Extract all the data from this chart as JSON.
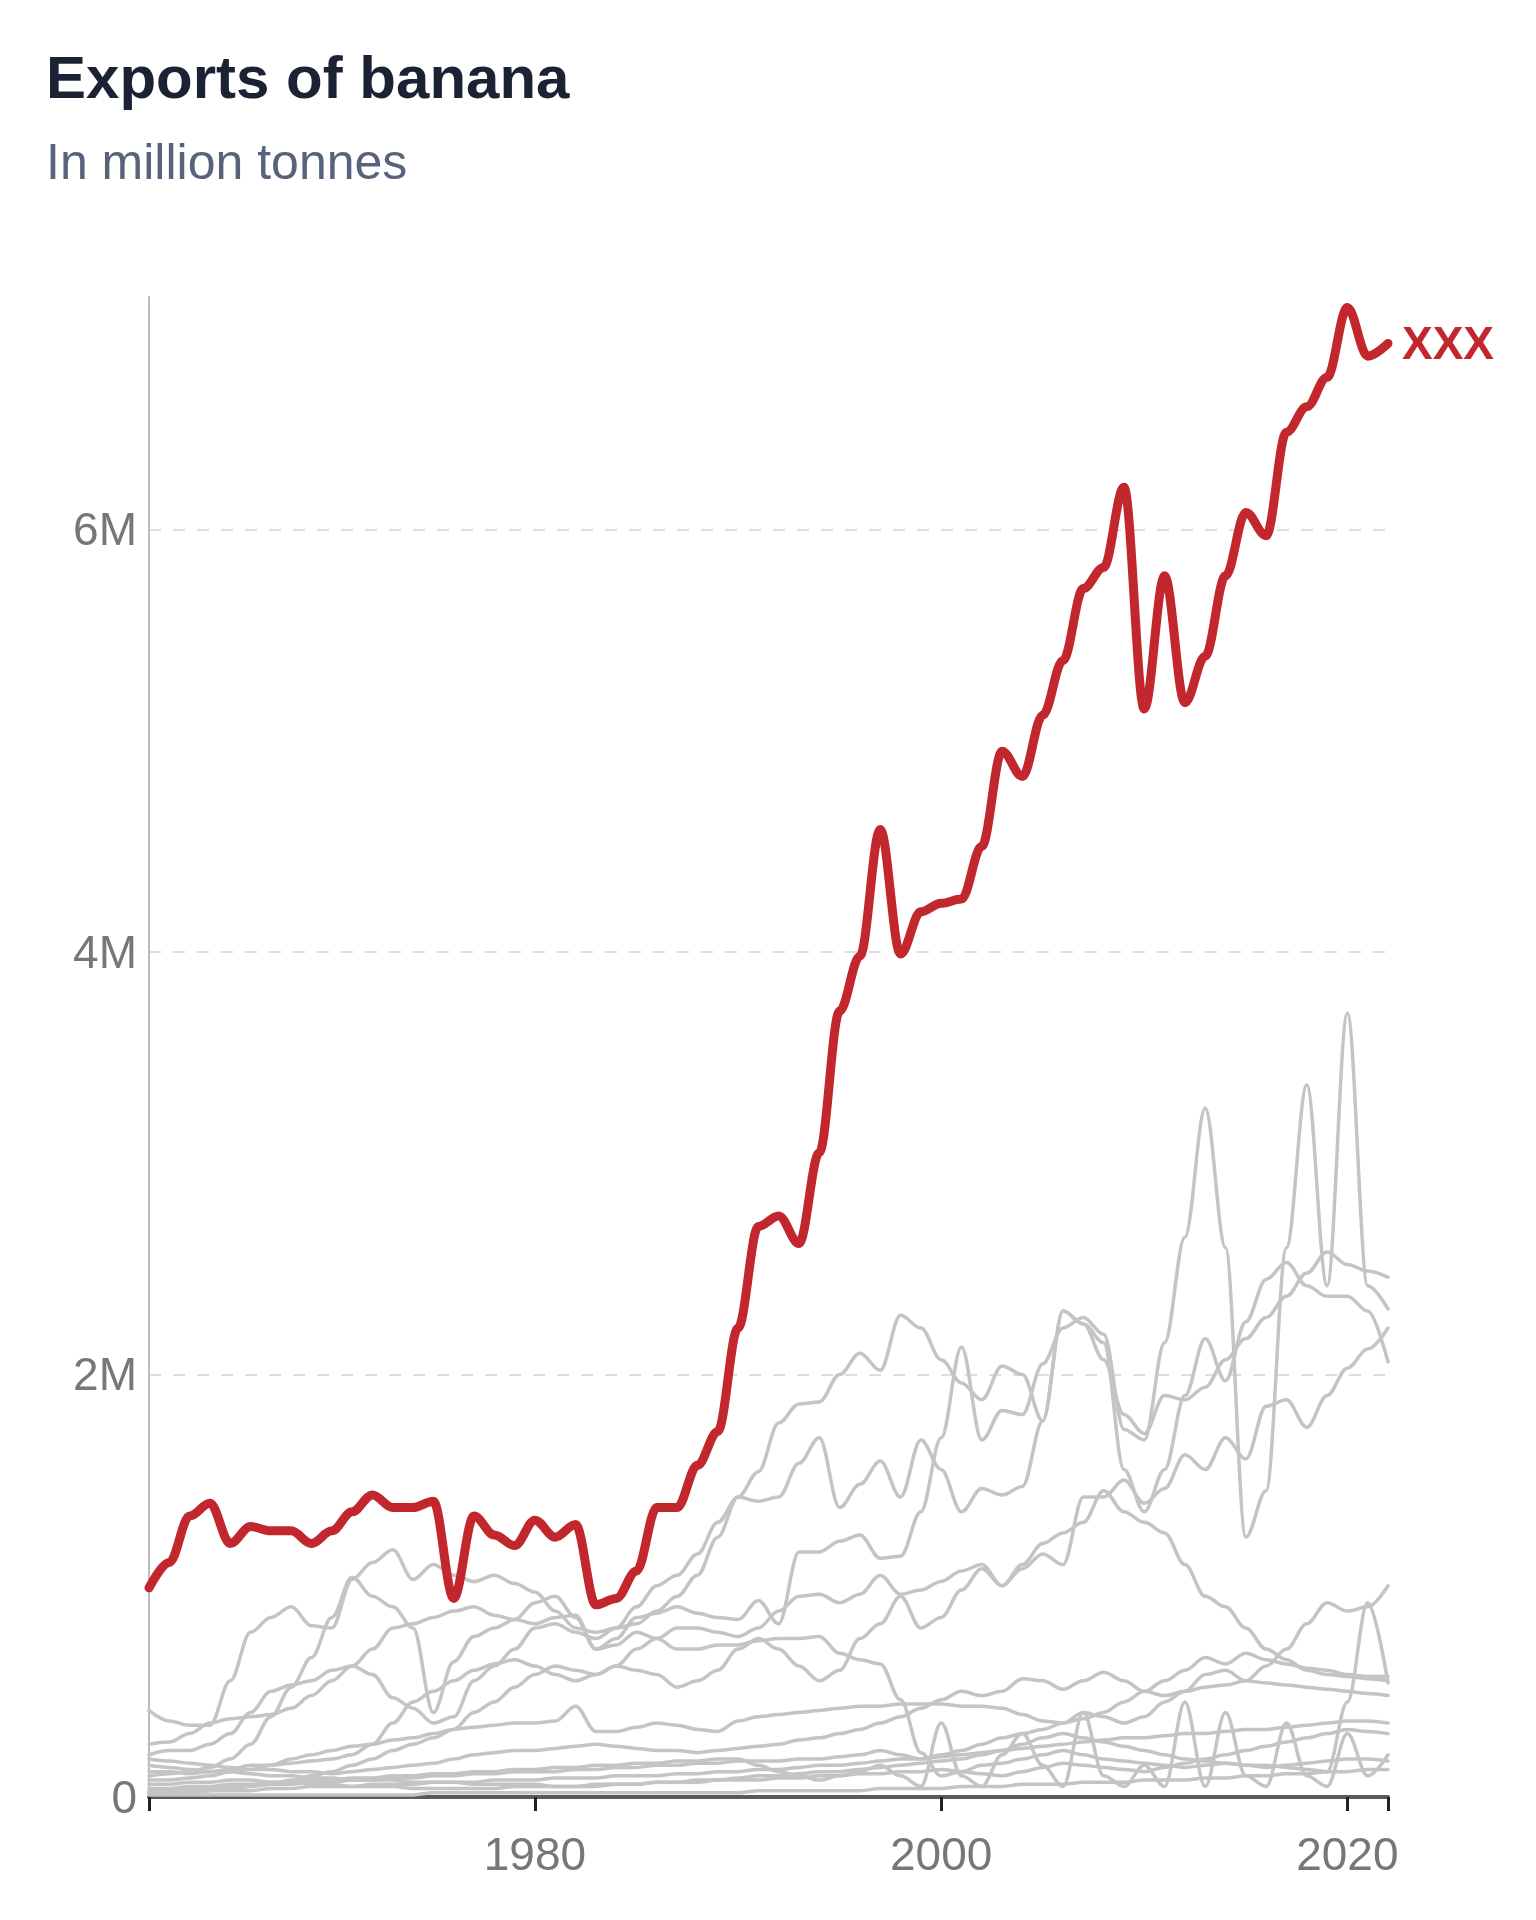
{
  "chart_data": {
    "type": "line",
    "title": "Exports of banana",
    "subtitle": "In million tonnes",
    "x": [
      1961,
      1962,
      1963,
      1964,
      1965,
      1966,
      1967,
      1968,
      1969,
      1970,
      1971,
      1972,
      1973,
      1974,
      1975,
      1976,
      1977,
      1978,
      1979,
      1980,
      1981,
      1982,
      1983,
      1984,
      1985,
      1986,
      1987,
      1988,
      1989,
      1990,
      1991,
      1992,
      1993,
      1994,
      1995,
      1996,
      1997,
      1998,
      1999,
      2000,
      2001,
      2002,
      2003,
      2004,
      2005,
      2006,
      2007,
      2008,
      2009,
      2010,
      2011,
      2012,
      2013,
      2014,
      2015,
      2016,
      2017,
      2018,
      2019,
      2020,
      2021,
      2022
    ],
    "series": [
      {
        "color": "#c4c4c4",
        "values": [
          0.41,
          0.36,
          0.34,
          0.34,
          0.55,
          0.78,
          0.85,
          0.9,
          0.81,
          0.8,
          1.03,
          1.11,
          1.17,
          1.03,
          1.1,
          1.05,
          1.02,
          1.05,
          1.01,
          0.97,
          0.88,
          0.8,
          0.78,
          0.8,
          0.82,
          0.88,
          0.95,
          1.05,
          1.23,
          1.42,
          1.54,
          1.77,
          1.86,
          1.87,
          2.0,
          2.1,
          2.02,
          2.28,
          2.22,
          2.07,
          1.96,
          1.88,
          2.04,
          2.0,
          1.78,
          2.3,
          2.24,
          2.07,
          1.81,
          1.72,
          1.9,
          1.88,
          1.94,
          2.07,
          2.17,
          2.27,
          2.37,
          2.48,
          2.58,
          2.52,
          2.49,
          2.46
        ]
      },
      {
        "color": "#c4c4c4",
        "values": [
          0.1,
          0.11,
          0.12,
          0.14,
          0.18,
          0.25,
          0.38,
          0.52,
          0.66,
          0.85,
          1.04,
          0.95,
          0.9,
          0.8,
          0.4,
          0.64,
          0.76,
          0.8,
          0.84,
          0.92,
          0.95,
          0.85,
          0.7,
          0.75,
          0.85,
          0.87,
          0.9,
          0.87,
          0.85,
          0.84,
          0.93,
          0.82,
          1.16,
          1.16,
          1.21,
          1.24,
          1.13,
          1.14,
          1.35,
          1.7,
          2.13,
          1.69,
          1.83,
          1.81,
          2.05,
          2.22,
          2.27,
          2.19,
          1.74,
          1.69,
          2.15,
          2.65,
          3.26,
          2.6,
          1.23,
          1.45,
          2.6,
          3.37,
          2.42,
          3.71,
          2.42,
          2.31
        ]
      },
      {
        "color": "#c4c4c4",
        "values": [
          0.2,
          0.22,
          0.22,
          0.25,
          0.3,
          0.4,
          0.5,
          0.53,
          0.55,
          0.6,
          0.62,
          0.58,
          0.47,
          0.42,
          0.35,
          0.38,
          0.55,
          0.62,
          0.7,
          0.8,
          0.82,
          0.78,
          0.75,
          0.8,
          0.9,
          1.0,
          1.05,
          1.15,
          1.3,
          1.42,
          1.4,
          1.42,
          1.58,
          1.7,
          1.37,
          1.48,
          1.59,
          1.42,
          1.69,
          1.55,
          1.35,
          1.46,
          1.43,
          1.47,
          1.78,
          2.3,
          2.24,
          2.15,
          1.55,
          1.35,
          1.55,
          1.9,
          2.17,
          1.97,
          2.25,
          2.45,
          2.53,
          2.42,
          2.37,
          2.37,
          2.3,
          2.06
        ]
      },
      {
        "color": "#c4c4c4",
        "values": [
          0.02,
          0.02,
          0.03,
          0.03,
          0.04,
          0.05,
          0.06,
          0.08,
          0.1,
          0.12,
          0.15,
          0.18,
          0.22,
          0.25,
          0.28,
          0.32,
          0.4,
          0.45,
          0.52,
          0.58,
          0.62,
          0.6,
          0.58,
          0.62,
          0.7,
          0.75,
          0.8,
          0.8,
          0.78,
          0.76,
          0.8,
          0.88,
          0.95,
          0.96,
          0.92,
          0.96,
          1.05,
          0.96,
          0.98,
          1.02,
          1.07,
          1.1,
          1.0,
          1.08,
          1.15,
          1.1,
          1.42,
          1.42,
          1.5,
          1.39,
          1.46,
          1.62,
          1.55,
          1.7,
          1.6,
          1.85,
          1.88,
          1.75,
          1.9,
          2.03,
          2.12,
          2.22
        ]
      },
      {
        "color": "#c4c4c4",
        "values": [
          0.12,
          0.12,
          0.11,
          0.12,
          0.13,
          0.15,
          0.15,
          0.16,
          0.17,
          0.18,
          0.2,
          0.25,
          0.35,
          0.45,
          0.5,
          0.55,
          0.6,
          0.63,
          0.65,
          0.62,
          0.58,
          0.55,
          0.58,
          0.62,
          0.6,
          0.58,
          0.52,
          0.55,
          0.6,
          0.7,
          0.75,
          0.7,
          0.62,
          0.55,
          0.6,
          0.75,
          0.82,
          0.95,
          0.8,
          0.85,
          0.98,
          1.08,
          1.0,
          1.1,
          1.2,
          1.25,
          1.3,
          1.45,
          1.35,
          1.3,
          1.25,
          1.1,
          0.95,
          0.9,
          0.8,
          0.7,
          0.65,
          0.6,
          0.58,
          0.57,
          0.56,
          0.55
        ]
      },
      {
        "color": "#c4c4c4",
        "values": [
          0.25,
          0.26,
          0.3,
          0.35,
          0.37,
          0.38,
          0.39,
          0.42,
          0.48,
          0.55,
          0.62,
          0.7,
          0.8,
          0.82,
          0.85,
          0.88,
          0.9,
          0.86,
          0.84,
          0.82,
          0.85,
          0.86,
          0.7,
          0.72,
          0.78,
          0.75,
          0.7,
          0.7,
          0.72,
          0.72,
          0.74,
          0.75,
          0.75,
          0.76,
          0.68,
          0.65,
          0.63,
          0.46,
          0.21,
          0.1,
          0.12,
          0.15,
          0.16,
          0.18,
          0.2,
          0.22,
          0.2,
          0.18,
          0.17,
          0.16,
          0.15,
          0.14,
          0.15,
          0.16,
          0.15,
          0.14,
          0.15,
          0.16,
          0.17,
          0.18,
          0.18,
          0.17
        ]
      },
      {
        "color": "#c4c4c4",
        "values": [
          0.08,
          0.08,
          0.09,
          0.1,
          0.12,
          0.13,
          0.15,
          0.18,
          0.2,
          0.22,
          0.24,
          0.25,
          0.27,
          0.28,
          0.3,
          0.32,
          0.33,
          0.34,
          0.35,
          0.35,
          0.36,
          0.43,
          0.31,
          0.31,
          0.33,
          0.35,
          0.34,
          0.32,
          0.31,
          0.36,
          0.38,
          0.39,
          0.4,
          0.41,
          0.42,
          0.43,
          0.43,
          0.44,
          0.44,
          0.44,
          0.43,
          0.43,
          0.42,
          0.39,
          0.36,
          0.35,
          0.37,
          0.4,
          0.45,
          0.5,
          0.55,
          0.6,
          0.66,
          0.63,
          0.68,
          0.65,
          0.63,
          0.61,
          0.6,
          0.58,
          0.57,
          0.57
        ]
      },
      {
        "color": "#c4c4c4",
        "values": [
          0.03,
          0.03,
          0.04,
          0.04,
          0.05,
          0.05,
          0.06,
          0.06,
          0.07,
          0.07,
          0.08,
          0.08,
          0.09,
          0.09,
          0.1,
          0.1,
          0.11,
          0.11,
          0.12,
          0.12,
          0.12,
          0.13,
          0.13,
          0.14,
          0.14,
          0.15,
          0.15,
          0.16,
          0.16,
          0.17,
          0.17,
          0.17,
          0.18,
          0.18,
          0.19,
          0.2,
          0.22,
          0.2,
          0.18,
          0.2,
          0.22,
          0.25,
          0.28,
          0.3,
          0.32,
          0.35,
          0.4,
          0.38,
          0.35,
          0.38,
          0.45,
          0.5,
          0.58,
          0.6,
          0.55,
          0.62,
          0.7,
          0.82,
          0.92,
          0.88,
          0.9,
          1.0
        ]
      },
      {
        "color": "#c4c4c4",
        "values": [
          0.15,
          0.14,
          0.13,
          0.12,
          0.12,
          0.11,
          0.1,
          0.1,
          0.09,
          0.09,
          0.08,
          0.08,
          0.08,
          0.07,
          0.07,
          0.07,
          0.06,
          0.06,
          0.06,
          0.06,
          0.05,
          0.05,
          0.05,
          0.06,
          0.06,
          0.07,
          0.07,
          0.08,
          0.08,
          0.09,
          0.1,
          0.1,
          0.11,
          0.12,
          0.12,
          0.13,
          0.14,
          0.15,
          0.16,
          0.17,
          0.18,
          0.2,
          0.22,
          0.25,
          0.28,
          0.3,
          0.28,
          0.26,
          0.24,
          0.22,
          0.2,
          0.18,
          0.17,
          0.16,
          0.15,
          0.15,
          0.14,
          0.13,
          0.12,
          0.45,
          0.92,
          0.54
        ]
      },
      {
        "color": "#c4c4c4",
        "values": [
          0.18,
          0.17,
          0.16,
          0.15,
          0.14,
          0.13,
          0.13,
          0.12,
          0.12,
          0.11,
          0.12,
          0.13,
          0.14,
          0.15,
          0.16,
          0.18,
          0.2,
          0.21,
          0.22,
          0.22,
          0.23,
          0.24,
          0.25,
          0.24,
          0.23,
          0.22,
          0.22,
          0.21,
          0.22,
          0.23,
          0.24,
          0.25,
          0.27,
          0.28,
          0.3,
          0.32,
          0.35,
          0.38,
          0.42,
          0.46,
          0.5,
          0.48,
          0.5,
          0.56,
          0.55,
          0.51,
          0.55,
          0.59,
          0.55,
          0.5,
          0.48,
          0.5,
          0.52,
          0.53,
          0.55,
          0.54,
          0.53,
          0.52,
          0.51,
          0.5,
          0.49,
          0.48
        ]
      },
      {
        "color": "#c4c4c4",
        "values": [
          0.02,
          0.02,
          0.02,
          0.03,
          0.03,
          0.03,
          0.04,
          0.04,
          0.05,
          0.05,
          0.05,
          0.06,
          0.06,
          0.06,
          0.07,
          0.07,
          0.07,
          0.08,
          0.08,
          0.08,
          0.09,
          0.09,
          0.09,
          0.1,
          0.1,
          0.1,
          0.11,
          0.11,
          0.12,
          0.12,
          0.13,
          0.13,
          0.14,
          0.15,
          0.15,
          0.16,
          0.17,
          0.18,
          0.18,
          0.19,
          0.2,
          0.21,
          0.22,
          0.23,
          0.24,
          0.25,
          0.26,
          0.27,
          0.28,
          0.28,
          0.29,
          0.3,
          0.3,
          0.31,
          0.32,
          0.32,
          0.33,
          0.34,
          0.35,
          0.36,
          0.36,
          0.35
        ]
      },
      {
        "color": "#c4c4c4",
        "values": [
          0.06,
          0.06,
          0.07,
          0.07,
          0.08,
          0.08,
          0.07,
          0.07,
          0.06,
          0.06,
          0.05,
          0.05,
          0.05,
          0.04,
          0.04,
          0.04,
          0.04,
          0.04,
          0.05,
          0.05,
          0.05,
          0.05,
          0.06,
          0.06,
          0.06,
          0.07,
          0.07,
          0.07,
          0.08,
          0.08,
          0.08,
          0.09,
          0.09,
          0.1,
          0.1,
          0.11,
          0.11,
          0.12,
          0.12,
          0.13,
          0.12,
          0.11,
          0.1,
          0.12,
          0.14,
          0.16,
          0.15,
          0.14,
          0.13,
          0.12,
          0.14,
          0.16,
          0.18,
          0.2,
          0.22,
          0.24,
          0.26,
          0.28,
          0.3,
          0.32,
          0.31,
          0.3
        ]
      },
      {
        "color": "#c4c4c4",
        "values": [
          0.01,
          0.01,
          0.01,
          0.01,
          0.01,
          0.01,
          0.01,
          0.01,
          0.01,
          0.01,
          0.01,
          0.01,
          0.01,
          0.01,
          0.02,
          0.02,
          0.02,
          0.02,
          0.02,
          0.02,
          0.02,
          0.02,
          0.02,
          0.02,
          0.02,
          0.02,
          0.02,
          0.02,
          0.02,
          0.02,
          0.03,
          0.03,
          0.03,
          0.03,
          0.03,
          0.03,
          0.04,
          0.04,
          0.04,
          0.04,
          0.05,
          0.05,
          0.05,
          0.06,
          0.06,
          0.06,
          0.07,
          0.07,
          0.07,
          0.08,
          0.08,
          0.08,
          0.09,
          0.09,
          0.1,
          0.1,
          0.11,
          0.11,
          0.12,
          0.12,
          0.13,
          0.13
        ]
      },
      {
        "color": "#c4c4c4",
        "values": [
          0.04,
          0.04,
          0.05,
          0.05,
          0.06,
          0.06,
          0.07,
          0.07,
          0.08,
          0.08,
          0.09,
          0.09,
          0.1,
          0.1,
          0.11,
          0.11,
          0.12,
          0.12,
          0.13,
          0.13,
          0.14,
          0.14,
          0.15,
          0.15,
          0.16,
          0.16,
          0.17,
          0.17,
          0.18,
          0.18,
          0.15,
          0.12,
          0.1,
          0.08,
          0.1,
          0.12,
          0.15,
          0.1,
          0.05,
          0.35,
          0.1,
          0.05,
          0.2,
          0.3,
          0.15,
          0.05,
          0.4,
          0.1,
          0.05,
          0.15,
          0.05,
          0.45,
          0.05,
          0.4,
          0.1,
          0.05,
          0.35,
          0.1,
          0.05,
          0.3,
          0.1,
          0.2
        ]
      },
      {
        "name": "XXX",
        "color": "#c1272d",
        "values": [
          0.99,
          1.11,
          1.33,
          1.39,
          1.2,
          1.28,
          1.26,
          1.26,
          1.2,
          1.26,
          1.35,
          1.43,
          1.37,
          1.37,
          1.4,
          0.94,
          1.33,
          1.24,
          1.19,
          1.31,
          1.23,
          1.29,
          0.91,
          0.94,
          1.07,
          1.37,
          1.37,
          1.57,
          1.73,
          2.22,
          2.7,
          2.75,
          2.62,
          3.05,
          3.72,
          3.98,
          4.58,
          3.99,
          4.19,
          4.23,
          4.25,
          4.5,
          4.95,
          4.83,
          5.12,
          5.38,
          5.72,
          5.82,
          6.2,
          5.15,
          5.78,
          5.18,
          5.4,
          5.78,
          6.08,
          5.97,
          6.46,
          6.58,
          6.72,
          7.05,
          6.82,
          6.88
        ]
      }
    ],
    "xlim": [
      1961,
      2022
    ],
    "xticks": [
      {
        "value": 1961,
        "label": null
      },
      1980,
      2000,
      2020,
      {
        "value": 2022,
        "label": null
      }
    ],
    "ylim": [
      0,
      7.1
    ],
    "yticks": [
      0,
      {
        "value": 2,
        "label": "2M"
      },
      {
        "value": 4,
        "label": "4M"
      },
      {
        "value": 6,
        "label": "6M"
      }
    ],
    "grid": "y",
    "marker": "none",
    "line_style": "solid"
  }
}
